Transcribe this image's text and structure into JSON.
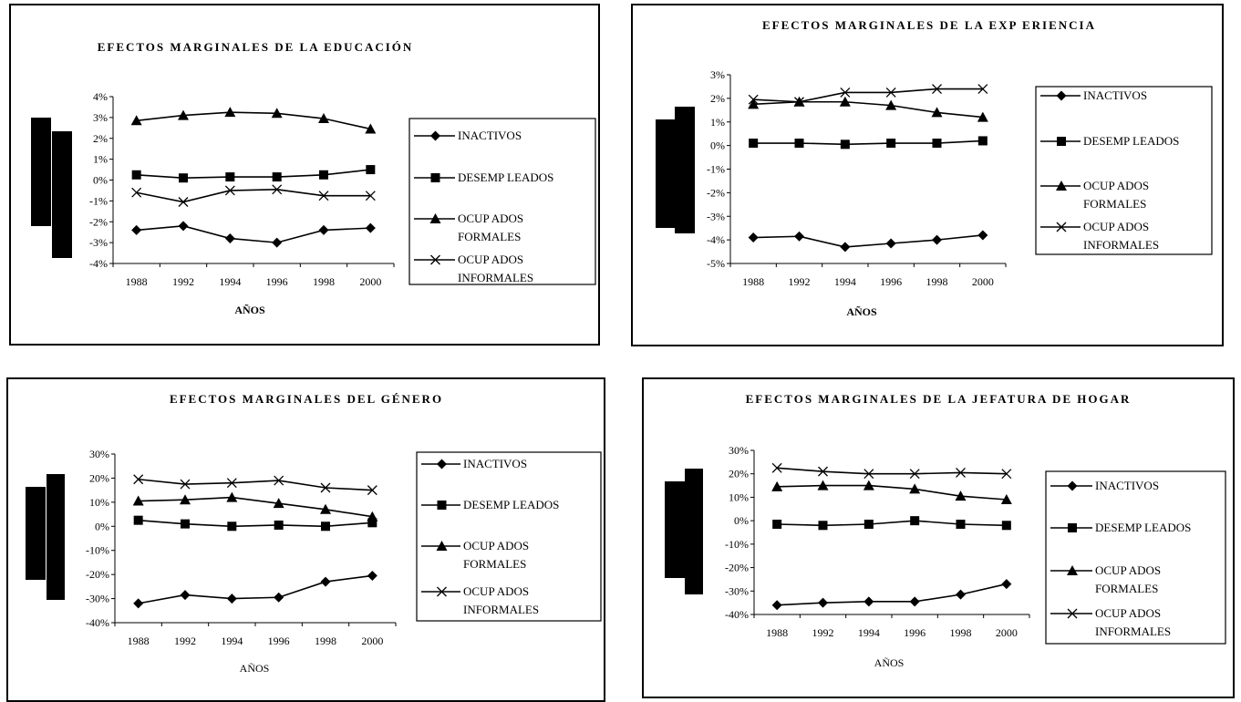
{
  "legend_labels": [
    [
      "INACTIVOS"
    ],
    [
      "DESEMP LEADOS"
    ],
    [
      "OCUP ADOS",
      "FORMALES"
    ],
    [
      "OCUP ADOS",
      "INFORMALES"
    ]
  ],
  "colors": {
    "line": "#000000",
    "background": "#ffffff"
  },
  "chart_data": [
    {
      "type": "line",
      "title": "EFECTOS MARGINALES DE  LA EDUCACIÓN",
      "xlabel": "AÑOS",
      "ylabel": "",
      "categories": [
        "1988",
        "1992",
        "1994",
        "1996",
        "1998",
        "2000"
      ],
      "y_ticks": [
        "4%",
        "3%",
        "2%",
        "1%",
        "0%",
        "-1%",
        "-2%",
        "-3%",
        "-4%"
      ],
      "ylim": [
        -4,
        4
      ],
      "legend_position": "right",
      "series": [
        {
          "name": "INACTIVOS",
          "marker": "diamond",
          "values": [
            -2.4,
            -2.2,
            -2.8,
            -3.0,
            -2.4,
            -2.3
          ]
        },
        {
          "name": "DESEMP LEADOS",
          "marker": "square",
          "values": [
            0.25,
            0.1,
            0.15,
            0.15,
            0.25,
            0.5
          ]
        },
        {
          "name": "OCUP ADOS FORMALES",
          "marker": "triangle",
          "values": [
            2.85,
            3.1,
            3.25,
            3.2,
            2.95,
            2.45
          ]
        },
        {
          "name": "OCUP ADOS INFORMALES",
          "marker": "x",
          "values": [
            -0.6,
            -1.05,
            -0.5,
            -0.45,
            -0.75,
            -0.75
          ]
        }
      ]
    },
    {
      "type": "line",
      "title": "EFECTOS MARGINALES DE LA EXP ERIENCIA",
      "xlabel": "AÑOS",
      "ylabel": "",
      "categories": [
        "1988",
        "1992",
        "1994",
        "1996",
        "1998",
        "2000"
      ],
      "y_ticks": [
        "3%",
        "2%",
        "1%",
        "0%",
        "-1%",
        "-2%",
        "-3%",
        "-4%",
        "-5%"
      ],
      "ylim": [
        -5,
        3
      ],
      "legend_position": "right",
      "series": [
        {
          "name": "INACTIVOS",
          "marker": "diamond",
          "values": [
            -3.9,
            -3.85,
            -4.3,
            -4.15,
            -4.0,
            -3.8
          ]
        },
        {
          "name": "DESEMP LEADOS",
          "marker": "square",
          "values": [
            0.1,
            0.1,
            0.05,
            0.1,
            0.1,
            0.2
          ]
        },
        {
          "name": "OCUP ADOS FORMALES",
          "marker": "triangle",
          "values": [
            1.75,
            1.85,
            1.85,
            1.7,
            1.4,
            1.2
          ]
        },
        {
          "name": "OCUP ADOS INFORMALES",
          "marker": "x",
          "values": [
            1.95,
            1.85,
            2.25,
            2.25,
            2.4,
            2.4
          ]
        }
      ]
    },
    {
      "type": "line",
      "title": "EFECTOS MARGINALES DEL GÉNERO",
      "xlabel": "AÑOS",
      "ylabel": "",
      "categories": [
        "1988",
        "1992",
        "1994",
        "1996",
        "1998",
        "2000"
      ],
      "y_ticks": [
        "30%",
        "20%",
        "10%",
        "0%",
        "-10%",
        "-20%",
        "-30%",
        "-40%"
      ],
      "ylim": [
        -40,
        30
      ],
      "legend_position": "right",
      "series": [
        {
          "name": "INACTIVOS",
          "marker": "diamond",
          "values": [
            -32,
            -28.5,
            -30,
            -29.5,
            -23,
            -20.5
          ]
        },
        {
          "name": "DESEMP LEADOS",
          "marker": "square",
          "values": [
            2.5,
            1,
            0,
            0.5,
            0,
            1.5
          ]
        },
        {
          "name": "OCUP ADOS FORMALES",
          "marker": "triangle",
          "values": [
            10.5,
            11,
            12,
            9.5,
            7,
            4
          ]
        },
        {
          "name": "OCUP ADOS INFORMALES",
          "marker": "x",
          "values": [
            19.5,
            17.5,
            18,
            19,
            16,
            15
          ]
        }
      ]
    },
    {
      "type": "line",
      "title": "EFECTOS MARGINALES DE LA JEFATURA DE HOGAR",
      "xlabel": "AÑOS",
      "ylabel": "",
      "categories": [
        "1988",
        "1992",
        "1994",
        "1996",
        "1998",
        "2000"
      ],
      "y_ticks": [
        "30%",
        "20%",
        "10%",
        "0%",
        "-10%",
        "-20%",
        "-30%",
        "-40%"
      ],
      "ylim": [
        -40,
        30
      ],
      "legend_position": "right",
      "series": [
        {
          "name": "INACTIVOS",
          "marker": "diamond",
          "values": [
            -36,
            -35,
            -34.5,
            -34.5,
            -31.5,
            -27
          ]
        },
        {
          "name": "DESEMP LEADOS",
          "marker": "square",
          "values": [
            -1.5,
            -2,
            -1.5,
            0,
            -1.5,
            -2
          ]
        },
        {
          "name": "OCUP ADOS FORMALES",
          "marker": "triangle",
          "values": [
            14.5,
            15,
            15,
            13.5,
            10.5,
            9
          ]
        },
        {
          "name": "OCUP ADOS INFORMALES",
          "marker": "x",
          "values": [
            22.5,
            21,
            20,
            20,
            20.5,
            20
          ]
        }
      ]
    }
  ]
}
